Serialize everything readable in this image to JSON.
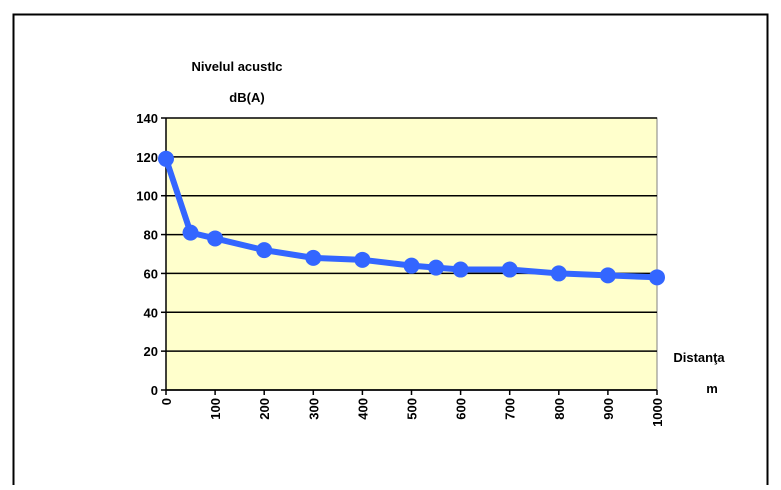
{
  "chart_data": {
    "type": "line",
    "y_label": [
      "Nivelul acustIc",
      "dB(A)"
    ],
    "x_label": [
      "Distanţa",
      "m"
    ],
    "x": [
      0,
      50,
      100,
      200,
      300,
      400,
      500,
      550,
      600,
      700,
      800,
      900,
      1000
    ],
    "series": [
      {
        "color": "#3366ff",
        "values": [
          119,
          81,
          78,
          72,
          68,
          67,
          64,
          63,
          62,
          62,
          60,
          59,
          58
        ]
      }
    ],
    "xlim": [
      0,
      1000
    ],
    "xticks": [
      0,
      100,
      200,
      300,
      400,
      500,
      600,
      700,
      800,
      900,
      1000
    ],
    "ylim": [
      0,
      140
    ],
    "yticks": [
      0,
      20,
      40,
      60,
      80,
      100,
      120,
      140
    ],
    "grid": true,
    "plot_background": "#ffffcc"
  }
}
